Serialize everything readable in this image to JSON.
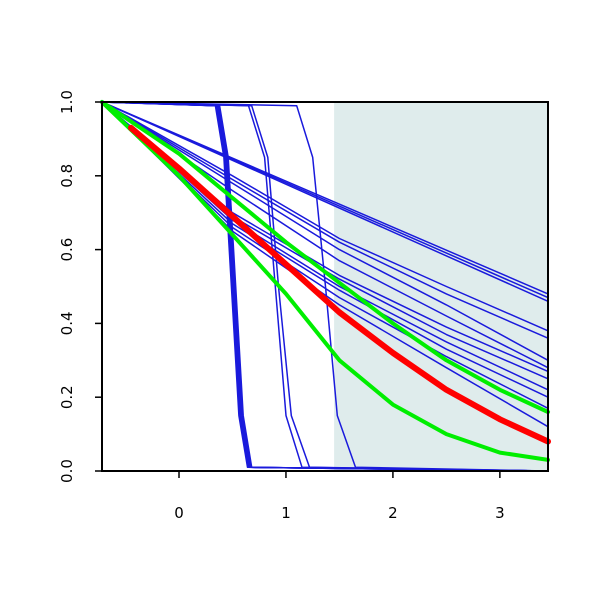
{
  "chart_data": {
    "type": "line",
    "title": "",
    "xlabel": "",
    "ylabel": "",
    "xlim": [
      -0.72,
      3.45
    ],
    "ylim": [
      0,
      1
    ],
    "x_ticks": [
      0,
      1,
      2,
      3
    ],
    "x_tick_labels": [
      "0",
      "1",
      "2",
      "3"
    ],
    "y_ticks": [
      0,
      0.2,
      0.4,
      0.6,
      0.8,
      1.0
    ],
    "y_tick_labels": [
      "0.0",
      "0.2",
      "0.4",
      "0.6",
      "0.8",
      "1.0"
    ],
    "grid": false,
    "legend": "none",
    "shaded_region": {
      "x_start": 1.45,
      "x_end": 3.45,
      "color": "#dfecec"
    },
    "colors": {
      "blue": "#1a1adc",
      "red": "#ff0000",
      "green": "#00ee00",
      "axis": "#000000"
    },
    "series": [
      {
        "color": "blue",
        "width": 1.5,
        "x": [
          -0.72,
          3.45
        ],
        "y": [
          1.0,
          0.48
        ]
      },
      {
        "color": "blue",
        "width": 1.5,
        "x": [
          -0.72,
          3.45
        ],
        "y": [
          1.0,
          0.47
        ]
      },
      {
        "color": "blue",
        "width": 1.5,
        "x": [
          -0.72,
          3.45
        ],
        "y": [
          1.0,
          0.46
        ]
      },
      {
        "color": "blue",
        "width": 1.5,
        "x": [
          -0.72,
          0.5,
          1.5,
          2.5,
          3.45
        ],
        "y": [
          1.0,
          0.8,
          0.63,
          0.5,
          0.38
        ]
      },
      {
        "color": "blue",
        "width": 1.5,
        "x": [
          -0.72,
          0.5,
          1.5,
          2.5,
          3.45
        ],
        "y": [
          1.0,
          0.79,
          0.62,
          0.48,
          0.36
        ]
      },
      {
        "color": "blue",
        "width": 1.5,
        "x": [
          -0.72,
          0.5,
          1.5,
          2.5,
          3.45
        ],
        "y": [
          1.0,
          0.78,
          0.6,
          0.45,
          0.3
        ]
      },
      {
        "color": "blue",
        "width": 1.5,
        "x": [
          -0.72,
          0.5,
          1.5,
          2.5,
          3.45
        ],
        "y": [
          1.0,
          0.76,
          0.57,
          0.42,
          0.28
        ]
      },
      {
        "color": "blue",
        "width": 1.5,
        "x": [
          -0.72,
          0.5,
          1.5,
          2.5,
          3.45
        ],
        "y": [
          1.0,
          0.7,
          0.53,
          0.39,
          0.27
        ]
      },
      {
        "color": "blue",
        "width": 1.5,
        "x": [
          -0.72,
          0.5,
          1.5,
          2.5,
          3.45
        ],
        "y": [
          1.0,
          0.69,
          0.52,
          0.37,
          0.25
        ]
      },
      {
        "color": "blue",
        "width": 1.5,
        "x": [
          -0.72,
          0.5,
          1.5,
          2.5,
          3.45
        ],
        "y": [
          1.0,
          0.68,
          0.5,
          0.35,
          0.22
        ]
      },
      {
        "color": "blue",
        "width": 1.5,
        "x": [
          -0.72,
          0.5,
          1.5,
          2.5,
          3.45
        ],
        "y": [
          1.0,
          0.67,
          0.49,
          0.33,
          0.2
        ]
      },
      {
        "color": "blue",
        "width": 1.5,
        "x": [
          -0.72,
          0.5,
          1.5,
          2.5,
          3.45
        ],
        "y": [
          1.0,
          0.66,
          0.47,
          0.31,
          0.17
        ]
      },
      {
        "color": "blue",
        "width": 1.5,
        "x": [
          -0.72,
          0.5,
          1.5,
          2.5,
          3.45
        ],
        "y": [
          1.0,
          0.65,
          0.45,
          0.28,
          0.12
        ]
      },
      {
        "color": "blue",
        "width": 1.5,
        "x": [
          -0.72,
          0.35,
          0.43,
          0.5,
          0.57,
          0.65,
          3.45
        ],
        "y": [
          1.0,
          0.99,
          0.85,
          0.5,
          0.15,
          0.01,
          0.0
        ]
      },
      {
        "color": "blue",
        "width": 1.5,
        "x": [
          -0.72,
          0.36,
          0.44,
          0.51,
          0.58,
          0.66,
          3.45
        ],
        "y": [
          1.0,
          0.99,
          0.85,
          0.5,
          0.15,
          0.01,
          0.0
        ]
      },
      {
        "color": "blue",
        "width": 1.5,
        "x": [
          -0.72,
          0.37,
          0.45,
          0.52,
          0.59,
          0.67,
          3.45
        ],
        "y": [
          1.0,
          0.99,
          0.85,
          0.5,
          0.15,
          0.01,
          0.0
        ]
      },
      {
        "color": "blue",
        "width": 1.5,
        "x": [
          -0.72,
          0.38,
          0.46,
          0.53,
          0.6,
          0.68,
          3.45
        ],
        "y": [
          1.0,
          0.99,
          0.85,
          0.5,
          0.15,
          0.01,
          0.0
        ]
      },
      {
        "color": "blue",
        "width": 1.5,
        "x": [
          -0.72,
          0.34,
          0.42,
          0.49,
          0.56,
          0.64,
          3.45
        ],
        "y": [
          1.0,
          0.99,
          0.85,
          0.5,
          0.15,
          0.01,
          0.0
        ]
      },
      {
        "color": "blue",
        "width": 1.5,
        "x": [
          -0.72,
          0.65,
          0.8,
          0.9,
          1.0,
          1.15,
          3.45
        ],
        "y": [
          1.0,
          0.99,
          0.85,
          0.5,
          0.15,
          0.01,
          0.0
        ]
      },
      {
        "color": "blue",
        "width": 1.5,
        "x": [
          -0.72,
          0.68,
          0.83,
          0.93,
          1.05,
          1.22,
          3.45
        ],
        "y": [
          1.0,
          0.99,
          0.85,
          0.5,
          0.15,
          0.01,
          0.0
        ]
      },
      {
        "color": "blue",
        "width": 1.5,
        "x": [
          -0.72,
          1.1,
          1.25,
          1.37,
          1.48,
          1.65,
          3.45
        ],
        "y": [
          1.0,
          0.99,
          0.85,
          0.5,
          0.15,
          0.01,
          0.0
        ]
      },
      {
        "color": "green",
        "width": 4,
        "x": [
          -0.72,
          0.0,
          0.5,
          1.0,
          1.5,
          2.0,
          2.5,
          3.0,
          3.45
        ],
        "y": [
          1.0,
          0.86,
          0.74,
          0.62,
          0.51,
          0.4,
          0.3,
          0.22,
          0.16
        ]
      },
      {
        "color": "green",
        "width": 4,
        "x": [
          -0.72,
          0.0,
          0.5,
          1.0,
          1.5,
          2.0,
          2.5,
          3.0,
          3.45
        ],
        "y": [
          1.0,
          0.8,
          0.64,
          0.48,
          0.3,
          0.18,
          0.1,
          0.05,
          0.03
        ]
      },
      {
        "color": "red",
        "width": 6,
        "x": [
          -0.45,
          0.0,
          0.5,
          1.0,
          1.5,
          2.0,
          2.5,
          3.0,
          3.45
        ],
        "y": [
          0.93,
          0.82,
          0.69,
          0.56,
          0.43,
          0.32,
          0.22,
          0.14,
          0.08
        ]
      }
    ]
  }
}
